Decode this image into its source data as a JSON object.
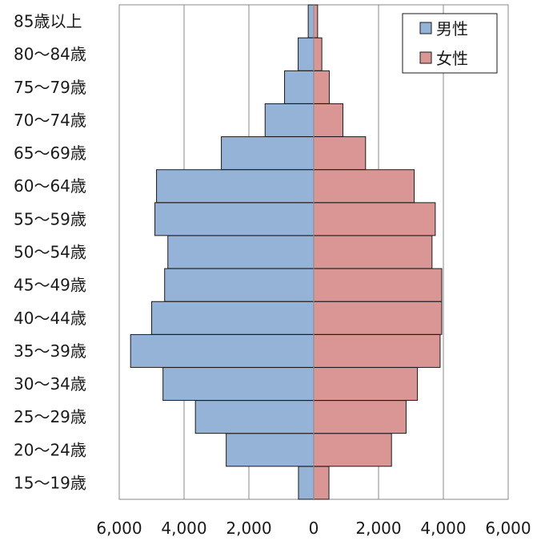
{
  "chart_data": {
    "type": "bar",
    "orientation": "horizontal",
    "subtype": "population-pyramid",
    "categories": [
      "15〜19歳",
      "20〜24歳",
      "25〜29歳",
      "30〜34歳",
      "35〜39歳",
      "40〜44歳",
      "45〜49歳",
      "50〜54歳",
      "55〜59歳",
      "60〜64歳",
      "65〜69歳",
      "70〜74歳",
      "75〜79歳",
      "80〜84歳",
      "85歳以上"
    ],
    "series": [
      {
        "name": "男性",
        "color": "#95b3d7",
        "values": [
          470,
          2700,
          3650,
          4650,
          5650,
          5000,
          4600,
          4500,
          4900,
          4850,
          2850,
          1500,
          900,
          480,
          170
        ]
      },
      {
        "name": "女性",
        "color": "#da9694",
        "values": [
          470,
          2400,
          2850,
          3200,
          3900,
          3950,
          3950,
          3650,
          3750,
          3100,
          1600,
          900,
          480,
          250,
          120
        ]
      }
    ],
    "xlim": [
      -6000,
      6000
    ],
    "xticks": [
      -6000,
      -4000,
      -2000,
      0,
      2000,
      4000,
      6000
    ],
    "xtick_labels": [
      "6,000",
      "4,000",
      "2,000",
      "0",
      "2,000",
      "4,000",
      "6,000"
    ],
    "grid": true,
    "legend_position": "top-right",
    "title": "",
    "xlabel": "",
    "ylabel": ""
  }
}
